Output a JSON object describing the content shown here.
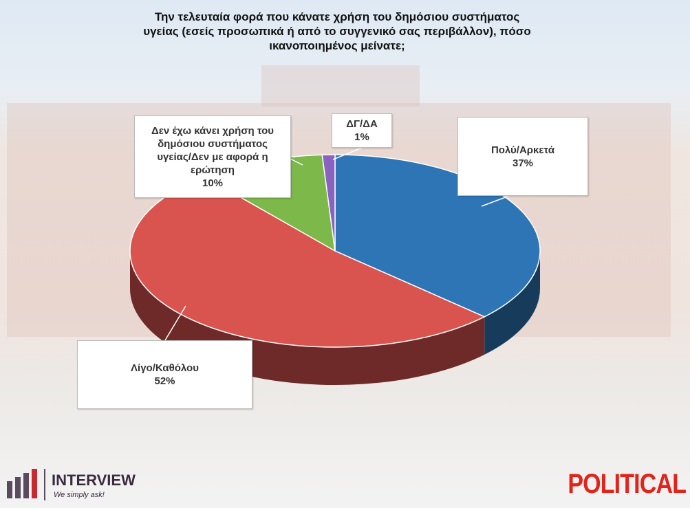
{
  "chart_data": {
    "type": "pie",
    "title": "Την τελευταία φορά που κάνατε χρήση του δημόσιου συστήματος υγείας (εσείς προσωπικά ή από το συγγενικό σας περιβάλλον), πόσο ικανοποιημένος μείνατε;",
    "categories": [
      "Πολύ/Αρκετά",
      "Λίγο/Καθόλου",
      "Δεν έχω κάνει χρήση του δημόσιου συστήματος υγείας/Δεν με αφορά η ερώτηση",
      "ΔΓ/ΔΑ"
    ],
    "values": [
      37,
      52,
      10,
      1
    ],
    "value_labels": [
      "37%",
      "52%",
      "10%",
      "1%"
    ],
    "colors": [
      "#2e75b6",
      "#d9534f",
      "#7db84a",
      "#8a63c0"
    ]
  },
  "logos": {
    "left": "INTERVIEW",
    "tagline": "We simply ask!",
    "right": "POLITICAL"
  }
}
